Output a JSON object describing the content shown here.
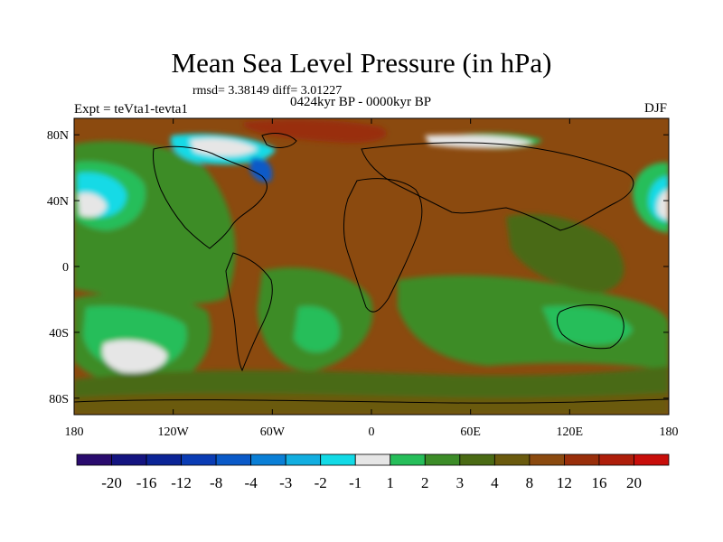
{
  "title": "Mean Sea Level Pressure (in hPa)",
  "stats": "rmsd= 3.38149 diff= 3.01227",
  "experiment": "Expt = teVta1-tevta1",
  "period": "0424kyr BP - 0000kyr BP",
  "season": "DJF",
  "map": {
    "y_ticks": [
      "80N",
      "40N",
      "0",
      "40S",
      "80S"
    ],
    "x_ticks": [
      "180",
      "120W",
      "60W",
      "0",
      "60E",
      "120E",
      "180"
    ],
    "background_color": "#8B4A0F",
    "land_outline_color": "#000000"
  },
  "colorbar": {
    "colors": [
      "#2A0B6E",
      "#141480",
      "#0B2496",
      "#0A3CB4",
      "#0A5AC8",
      "#0A7FD6",
      "#12AEE0",
      "#12DAE6",
      "#E6E6E6",
      "#26BE5A",
      "#3C8C28",
      "#4A6A14",
      "#6A5A0E",
      "#8B4A0F",
      "#992E0A",
      "#AE1E0A",
      "#C80E0A"
    ],
    "labels": [
      "-20",
      "-16",
      "-12",
      "-8",
      "-4",
      "-3",
      "-2",
      "-1",
      "1",
      "2",
      "3",
      "4",
      "8",
      "12",
      "16",
      "20"
    ]
  },
  "chart_data": {
    "type": "heatmap",
    "title": "Mean Sea Level Pressure (in hPa)",
    "subtitle": "rmsd= 3.38149 diff= 3.01227",
    "left_string": "Expt = teVta1-tevta1",
    "center_string": "0424kyr BP - 0000kyr BP",
    "right_string": "DJF",
    "x_range": [
      -180,
      180
    ],
    "y_range": [
      -90,
      90
    ],
    "x_tick_labels": [
      "180",
      "120W",
      "60W",
      "0",
      "60E",
      "120E",
      "180"
    ],
    "y_tick_labels": [
      "80N",
      "40N",
      "0",
      "40S",
      "80S"
    ],
    "contour_levels": [
      -20,
      -16,
      -12,
      -8,
      -4,
      -3,
      -2,
      -1,
      1,
      2,
      3,
      4,
      8,
      12,
      16,
      20
    ]
  }
}
